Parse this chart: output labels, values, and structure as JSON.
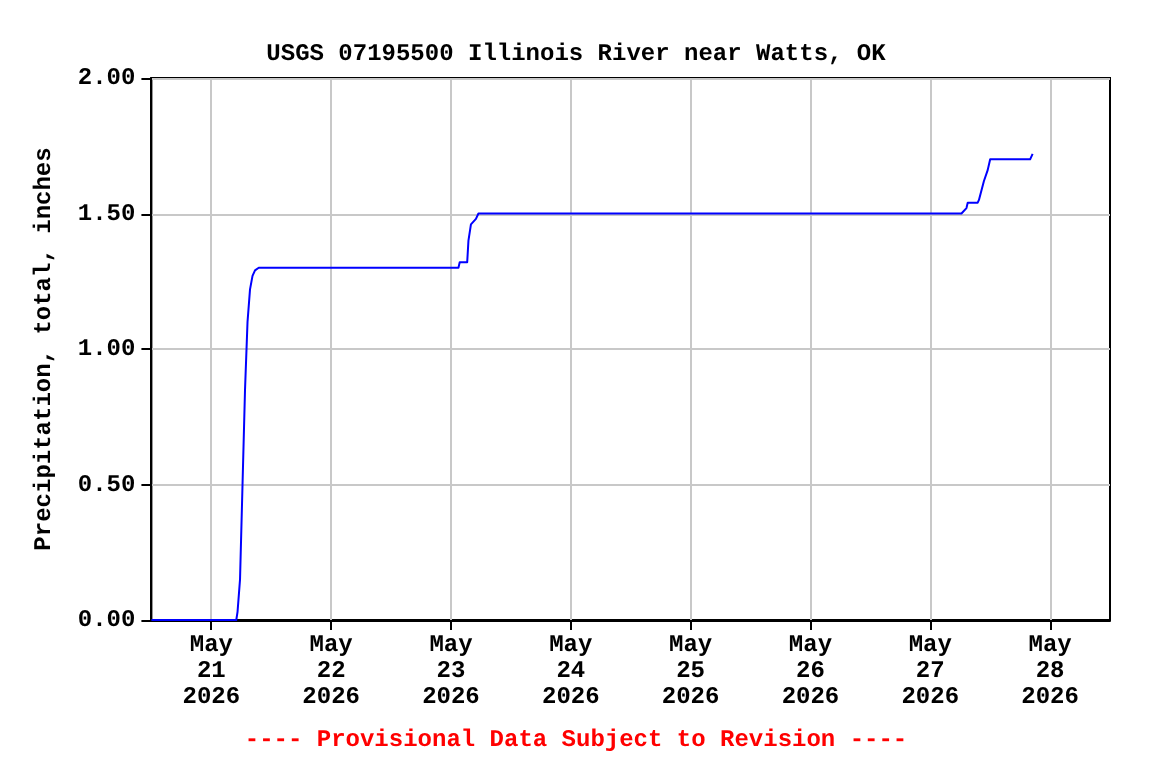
{
  "chart_data": {
    "type": "line",
    "title": "USGS 07195500 Illinois River near Watts, OK",
    "ylabel": "Precipitation, total, inches",
    "annotations": [
      "---- Provisional Data Subject to Revision ----"
    ],
    "series": [
      {
        "color": "#0000ff",
        "x": [
          "2026-05-20T12:00",
          "2026-05-21T05:00",
          "2026-05-21T05:15",
          "2026-05-21T05:45",
          "2026-05-21T06:15",
          "2026-05-21T06:45",
          "2026-05-21T07:15",
          "2026-05-21T07:45",
          "2026-05-21T08:15",
          "2026-05-21T08:45",
          "2026-05-21T09:30",
          "2026-05-23T01:30",
          "2026-05-23T01:45",
          "2026-05-23T03:15",
          "2026-05-23T03:30",
          "2026-05-23T04:00",
          "2026-05-23T04:30",
          "2026-05-23T05:00",
          "2026-05-23T05:30",
          "2026-05-27T06:15",
          "2026-05-27T07:15",
          "2026-05-27T07:30",
          "2026-05-27T09:30",
          "2026-05-27T09:45",
          "2026-05-27T10:45",
          "2026-05-27T11:30",
          "2026-05-27T12:00",
          "2026-05-27T20:00",
          "2026-05-27T20:30"
        ],
        "values": [
          0,
          0,
          0.03,
          0.15,
          0.5,
          0.85,
          1.1,
          1.22,
          1.27,
          1.29,
          1.3,
          1.3,
          1.32,
          1.32,
          1.4,
          1.46,
          1.47,
          1.48,
          1.5,
          1.5,
          1.52,
          1.54,
          1.54,
          1.55,
          1.62,
          1.66,
          1.7,
          1.7,
          1.72
        ]
      }
    ],
    "xlim": [
      "2026-05-20T12:00",
      "2026-05-28T12:00"
    ],
    "xticks": [
      {
        "value": "2026-05-21",
        "label": "May\n21\n2026"
      },
      {
        "value": "2026-05-22",
        "label": "May\n22\n2026"
      },
      {
        "value": "2026-05-23",
        "label": "May\n23\n2026"
      },
      {
        "value": "2026-05-24",
        "label": "May\n24\n2026"
      },
      {
        "value": "2026-05-25",
        "label": "May\n25\n2026"
      },
      {
        "value": "2026-05-26",
        "label": "May\n26\n2026"
      },
      {
        "value": "2026-05-27",
        "label": "May\n27\n2026"
      },
      {
        "value": "2026-05-28",
        "label": "May\n28\n2026"
      }
    ],
    "ylim": [
      0,
      2
    ],
    "yticks": [
      {
        "value": 0,
        "label": "0.00"
      },
      {
        "value": 0.5,
        "label": "0.50"
      },
      {
        "value": 1,
        "label": "1.00"
      },
      {
        "value": 1.5,
        "label": "1.50"
      },
      {
        "value": 2,
        "label": "2.00"
      }
    ],
    "grid": true,
    "marker": "none",
    "line_style": "solid"
  }
}
